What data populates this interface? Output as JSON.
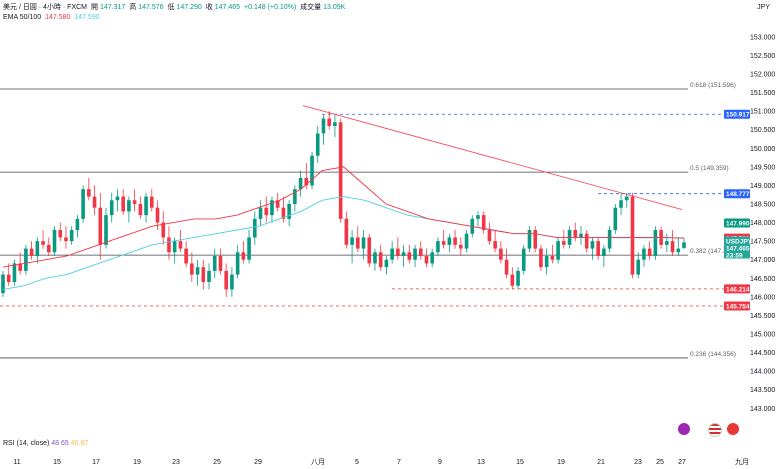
{
  "header": {
    "symbol_line": "美元 / 日圓 · 4小時 · FXCM",
    "open_label": "開",
    "open": "147.317",
    "high_label": "高",
    "high": "147.576",
    "low_label": "低",
    "low": "147.290",
    "close_label": "收",
    "close": "147.465",
    "change": "+0.148 (+0.10%)",
    "volume_label": "成交量",
    "volume": "13.09K",
    "ema_label": "EMA 50/100",
    "ema50_value": "147.580",
    "ema100_value": "147.590",
    "currency": "JPY"
  },
  "rsi": {
    "label": "RSI (14, close)",
    "value1": "48.65",
    "value2": "46.87"
  },
  "price_axis": {
    "ticks": [
      "153.000",
      "152.500",
      "152.000",
      "151.500",
      "151.000",
      "150.500",
      "150.000",
      "149.500",
      "149.000",
      "148.500",
      "148.000",
      "147.500",
      "147.000",
      "146.500",
      "146.000",
      "145.500",
      "145.000",
      "144.500",
      "144.000",
      "143.500",
      "143.000"
    ],
    "tags": [
      {
        "text": "150.917",
        "value": 150.917,
        "color": "#2962ff"
      },
      {
        "text": "148.777",
        "value": 148.777,
        "color": "#2962ff"
      },
      {
        "text": "147.990",
        "value": 147.99,
        "color": "#089981"
      },
      {
        "text": "147.580",
        "value": 147.58,
        "color": "#f23645"
      },
      {
        "text": "146.214",
        "value": 146.214,
        "color": "#f23645"
      },
      {
        "text": "145.754",
        "value": 145.754,
        "color": "#f23645"
      }
    ],
    "current_tag": {
      "symbol": "USDJPY",
      "price": "147.465",
      "countdown": "23:59",
      "value": 147.465,
      "color": "#26a69a"
    }
  },
  "fib_levels": [
    {
      "label": "0.618 (151.596)",
      "value": 151.596
    },
    {
      "label": "0.5 (149.359)",
      "value": 149.359
    },
    {
      "label": "0.382 (147.123)",
      "value": 147.123
    },
    {
      "label": "0.236 (144.356)",
      "value": 144.356
    }
  ],
  "time_axis": [
    "11",
    "15",
    "17",
    "19",
    "23",
    "25",
    "29",
    "八月",
    "5",
    "7",
    "9",
    "13",
    "15",
    "19",
    "21",
    "23",
    "25",
    "27",
    "九月"
  ],
  "chart_data": {
    "type": "candlestick",
    "ylim": [
      142.9,
      153.4
    ],
    "up_color": "#089981",
    "down_color": "#f23645",
    "ema50_color": "#f23645",
    "ema100_color": "#4dd0e1",
    "candles": [
      [
        146.1,
        146.7,
        146.0,
        146.6
      ],
      [
        146.6,
        146.9,
        146.3,
        146.4
      ],
      [
        146.4,
        147.0,
        146.3,
        146.9
      ],
      [
        146.9,
        147.2,
        146.6,
        146.7
      ],
      [
        146.7,
        147.4,
        146.6,
        147.3
      ],
      [
        147.3,
        147.5,
        147.0,
        147.1
      ],
      [
        147.1,
        147.6,
        146.9,
        147.5
      ],
      [
        147.5,
        147.8,
        147.3,
        147.4
      ],
      [
        147.4,
        147.6,
        147.1,
        147.2
      ],
      [
        147.2,
        147.9,
        147.1,
        147.8
      ],
      [
        147.8,
        148.0,
        147.5,
        147.6
      ],
      [
        147.6,
        147.9,
        147.3,
        147.5
      ],
      [
        147.5,
        147.9,
        147.4,
        147.8
      ],
      [
        147.8,
        148.2,
        147.6,
        148.1
      ],
      [
        148.1,
        149.0,
        148.0,
        148.9
      ],
      [
        148.9,
        149.2,
        148.6,
        148.7
      ],
      [
        148.7,
        149.0,
        148.2,
        148.4
      ],
      [
        148.4,
        148.8,
        147.0,
        147.4
      ],
      [
        147.4,
        148.4,
        147.3,
        148.2
      ],
      [
        148.2,
        148.8,
        148.0,
        148.6
      ],
      [
        148.6,
        148.9,
        148.3,
        148.7
      ],
      [
        148.7,
        148.9,
        148.2,
        148.3
      ],
      [
        148.3,
        148.7,
        148.0,
        148.6
      ],
      [
        148.6,
        148.9,
        148.3,
        148.5
      ],
      [
        148.5,
        148.7,
        148.1,
        148.2
      ],
      [
        148.2,
        148.8,
        148.0,
        148.7
      ],
      [
        148.7,
        148.9,
        148.3,
        148.4
      ],
      [
        148.4,
        148.6,
        147.8,
        148.0
      ],
      [
        148.0,
        148.3,
        147.4,
        147.6
      ],
      [
        147.6,
        147.9,
        147.0,
        147.2
      ],
      [
        147.2,
        147.6,
        146.9,
        147.5
      ],
      [
        147.5,
        147.8,
        147.2,
        147.3
      ],
      [
        147.3,
        147.5,
        146.8,
        146.9
      ],
      [
        146.9,
        147.2,
        146.4,
        146.6
      ],
      [
        146.6,
        147.0,
        146.3,
        146.8
      ],
      [
        146.8,
        147.0,
        146.2,
        146.4
      ],
      [
        146.4,
        146.9,
        146.2,
        146.7
      ],
      [
        146.7,
        147.3,
        146.5,
        147.1
      ],
      [
        147.1,
        147.3,
        146.6,
        146.7
      ],
      [
        146.7,
        146.9,
        146.0,
        146.2
      ],
      [
        146.2,
        146.8,
        146.0,
        146.6
      ],
      [
        146.6,
        147.4,
        146.5,
        147.2
      ],
      [
        147.2,
        147.5,
        146.9,
        147.0
      ],
      [
        147.0,
        147.8,
        146.9,
        147.6
      ],
      [
        147.6,
        148.3,
        147.4,
        148.1
      ],
      [
        148.1,
        148.6,
        147.9,
        148.4
      ],
      [
        148.4,
        148.7,
        148.0,
        148.2
      ],
      [
        148.2,
        148.7,
        148.0,
        148.6
      ],
      [
        148.6,
        148.8,
        148.3,
        148.4
      ],
      [
        148.4,
        148.7,
        148.0,
        148.1
      ],
      [
        148.1,
        148.6,
        147.9,
        148.5
      ],
      [
        148.5,
        149.0,
        148.3,
        148.9
      ],
      [
        148.9,
        149.4,
        148.7,
        149.2
      ],
      [
        149.2,
        149.6,
        148.9,
        149.0
      ],
      [
        149.0,
        149.9,
        148.9,
        149.8
      ],
      [
        149.8,
        150.6,
        149.6,
        150.4
      ],
      [
        150.4,
        150.9,
        150.1,
        150.8
      ],
      [
        150.8,
        151.0,
        150.5,
        150.6
      ],
      [
        150.6,
        150.9,
        150.3,
        150.7
      ],
      [
        150.7,
        150.8,
        148.0,
        148.1
      ],
      [
        148.1,
        148.3,
        147.3,
        147.4
      ],
      [
        147.4,
        147.8,
        146.9,
        147.6
      ],
      [
        147.6,
        147.9,
        147.2,
        147.3
      ],
      [
        147.3,
        147.8,
        147.0,
        147.6
      ],
      [
        147.6,
        147.7,
        146.8,
        146.9
      ],
      [
        146.9,
        147.3,
        146.7,
        147.2
      ],
      [
        147.2,
        147.4,
        146.7,
        146.8
      ],
      [
        146.8,
        147.1,
        146.6,
        147.0
      ],
      [
        147.0,
        147.5,
        146.9,
        147.3
      ],
      [
        147.3,
        147.6,
        147.0,
        147.1
      ],
      [
        147.1,
        147.4,
        146.8,
        147.2
      ],
      [
        147.2,
        147.4,
        146.9,
        147.0
      ],
      [
        147.0,
        147.4,
        146.8,
        147.3
      ],
      [
        147.3,
        147.5,
        147.0,
        147.1
      ],
      [
        147.1,
        147.3,
        146.8,
        146.9
      ],
      [
        146.9,
        147.3,
        146.8,
        147.2
      ],
      [
        147.2,
        147.6,
        147.1,
        147.5
      ],
      [
        147.5,
        147.8,
        147.3,
        147.4
      ],
      [
        147.4,
        147.7,
        147.2,
        147.6
      ],
      [
        147.6,
        147.8,
        147.3,
        147.4
      ],
      [
        147.4,
        147.6,
        147.1,
        147.3
      ],
      [
        147.3,
        147.8,
        147.2,
        147.7
      ],
      [
        147.7,
        148.2,
        147.6,
        148.1
      ],
      [
        148.1,
        148.3,
        147.9,
        148.2
      ],
      [
        148.2,
        148.3,
        147.7,
        147.8
      ],
      [
        147.8,
        148.0,
        147.4,
        147.5
      ],
      [
        147.5,
        147.8,
        147.2,
        147.3
      ],
      [
        147.3,
        147.5,
        146.9,
        147.0
      ],
      [
        147.0,
        147.3,
        146.5,
        146.6
      ],
      [
        146.6,
        146.8,
        146.2,
        146.3
      ],
      [
        146.3,
        146.8,
        146.2,
        146.7
      ],
      [
        146.7,
        147.4,
        146.6,
        147.3
      ],
      [
        147.3,
        147.9,
        147.2,
        147.8
      ],
      [
        147.8,
        147.9,
        147.2,
        147.3
      ],
      [
        147.3,
        147.4,
        146.7,
        146.8
      ],
      [
        146.8,
        147.3,
        146.6,
        147.1
      ],
      [
        147.1,
        147.4,
        146.9,
        147.0
      ],
      [
        147.0,
        147.6,
        146.9,
        147.5
      ],
      [
        147.5,
        147.8,
        147.3,
        147.4
      ],
      [
        147.4,
        147.9,
        147.3,
        147.8
      ],
      [
        147.8,
        148.0,
        147.5,
        147.6
      ],
      [
        147.6,
        147.9,
        147.4,
        147.7
      ],
      [
        147.7,
        147.8,
        147.2,
        147.3
      ],
      [
        147.3,
        147.6,
        147.0,
        147.5
      ],
      [
        147.5,
        147.6,
        147.0,
        147.1
      ],
      [
        147.1,
        147.4,
        146.8,
        147.3
      ],
      [
        147.3,
        147.9,
        147.2,
        147.8
      ],
      [
        147.8,
        148.5,
        147.7,
        148.4
      ],
      [
        148.4,
        148.8,
        148.2,
        148.6
      ],
      [
        148.6,
        148.8,
        148.4,
        148.7
      ],
      [
        148.7,
        148.8,
        146.5,
        146.6
      ],
      [
        146.6,
        147.2,
        146.5,
        147.0
      ],
      [
        147.0,
        147.4,
        146.8,
        147.3
      ],
      [
        147.3,
        147.5,
        147.0,
        147.1
      ],
      [
        147.1,
        147.9,
        147.0,
        147.8
      ],
      [
        147.8,
        147.9,
        147.3,
        147.4
      ],
      [
        147.4,
        147.7,
        147.2,
        147.5
      ],
      [
        147.5,
        147.8,
        147.1,
        147.2
      ],
      [
        147.2,
        147.6,
        147.1,
        147.3
      ],
      [
        147.317,
        147.576,
        147.29,
        147.465
      ]
    ],
    "ema50": [
      146.8,
      146.9,
      147.0,
      147.1,
      147.3,
      147.5,
      147.7,
      147.9,
      148.0,
      148.1,
      148.1,
      148.2,
      148.4,
      148.6,
      148.9,
      149.4,
      149.5,
      149.0,
      148.5,
      148.3,
      148.1,
      148.0,
      147.9,
      147.8,
      147.7,
      147.7,
      147.6,
      147.6,
      147.6,
      147.6,
      147.6,
      147.6,
      147.58
    ],
    "ema100": [
      146.2,
      146.3,
      146.5,
      146.6,
      146.8,
      147.0,
      147.2,
      147.4,
      147.5,
      147.6,
      147.7,
      147.8,
      147.9,
      148.1,
      148.3,
      148.6,
      148.7,
      148.6,
      148.4,
      148.2,
      148.1,
      148.0,
      147.9,
      147.8,
      147.7,
      147.7,
      147.6,
      147.6,
      147.6,
      147.59,
      147.59,
      147.59,
      147.59
    ]
  }
}
